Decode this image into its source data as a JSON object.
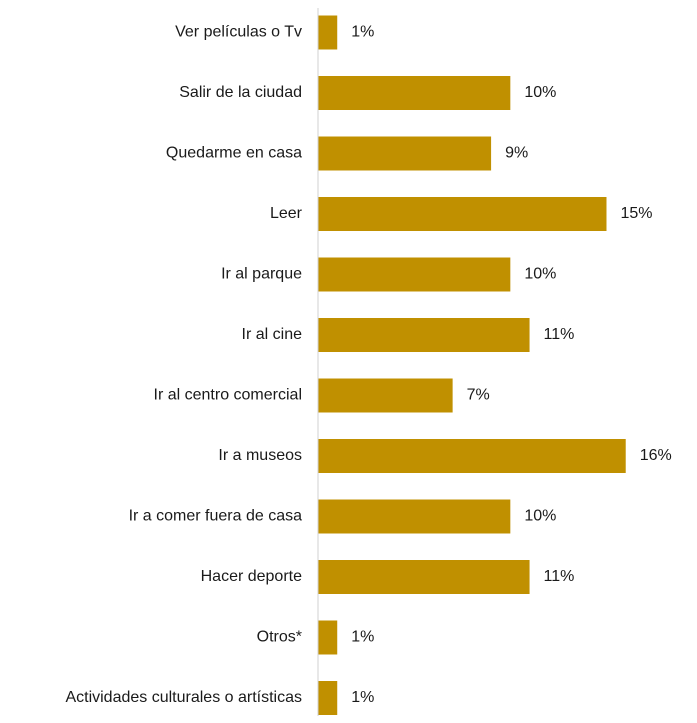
{
  "chart_data": {
    "type": "bar",
    "orientation": "horizontal",
    "categories": [
      "Ver películas o Tv",
      "Salir de la ciudad",
      "Quedarme en casa",
      "Leer",
      "Ir al parque",
      "Ir al cine",
      "Ir al centro comercial",
      "Ir a museos",
      "Ir a comer fuera de casa",
      "Hacer deporte",
      "Otros*",
      "Actividades culturales o artísticas"
    ],
    "values": [
      1,
      10,
      9,
      15,
      10,
      11,
      7,
      16,
      10,
      11,
      1,
      1
    ],
    "value_labels": [
      "1%",
      "10%",
      "9%",
      "15%",
      "10%",
      "11%",
      "7%",
      "16%",
      "10%",
      "11%",
      "1%",
      "1%"
    ],
    "unit": "%",
    "xlim": [
      0,
      16
    ],
    "grid": false,
    "legend": "none",
    "bar_color": "#c09000",
    "axis_color": "#d0d0d0"
  }
}
